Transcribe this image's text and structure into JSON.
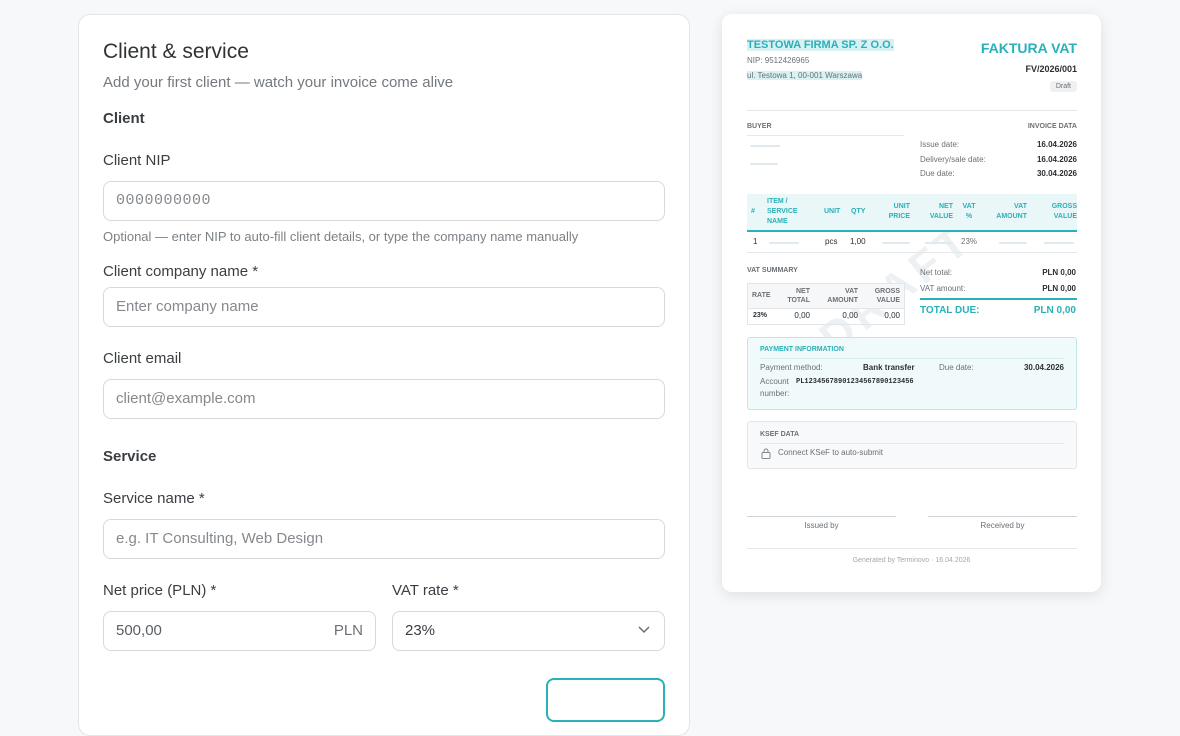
{
  "form": {
    "title": "Client & service",
    "subtitle": "Add your first client — watch your invoice come alive",
    "client_section": "Client",
    "nip_label": "Client NIP",
    "nip_placeholder": "0000000000",
    "nip_hint": "Optional — enter NIP to auto-fill client details, or type the company name manually",
    "company_label": "Client company name *",
    "company_placeholder": "Enter company name",
    "email_label": "Client email",
    "email_placeholder": "client@example.com",
    "service_section": "Service",
    "service_label": "Service name *",
    "service_placeholder": "e.g. IT Consulting, Web Design",
    "price_label": "Net price (PLN) *",
    "price_value": "500,00",
    "price_unit": "PLN",
    "vat_label": "VAT rate *",
    "vat_value": "23%"
  },
  "invoice": {
    "seller": {
      "name": "TESTOWA FIRMA SP. Z O.O.",
      "nip": "NIP: 9512426965",
      "address": "ul. Testowa 1, 00-001 Warszawa"
    },
    "title": "FAKTURA VAT",
    "number": "FV/2026/001",
    "status": "Draft",
    "buyer_heading": "BUYER",
    "data_heading": "INVOICE DATA",
    "dates": [
      {
        "label": "Issue date:",
        "value": "16.04.2026"
      },
      {
        "label": "Delivery/sale date:",
        "value": "16.04.2026"
      },
      {
        "label": "Due date:",
        "value": "30.04.2026"
      }
    ],
    "items": {
      "headers": [
        "#",
        "ITEM / SERVICE NAME",
        "UNIT",
        "QTY",
        "UNIT PRICE",
        "NET VALUE",
        "VAT %",
        "VAT AMOUNT",
        "GROSS VALUE"
      ],
      "rows": [
        {
          "no": "1",
          "unit": "pcs",
          "qty": "1,00",
          "vat_rate": "23%"
        }
      ]
    },
    "vat_summary": {
      "heading": "VAT SUMMARY",
      "headers": [
        "RATE",
        "NET TOTAL",
        "VAT AMOUNT",
        "GROSS VALUE"
      ],
      "rows": [
        [
          "23%",
          "0,00",
          "0,00",
          "0,00"
        ]
      ]
    },
    "totals": [
      {
        "label": "Net total:",
        "value": "PLN 0,00"
      },
      {
        "label": "VAT amount:",
        "value": "PLN 0,00"
      }
    ],
    "total_due": {
      "label": "TOTAL DUE:",
      "value": "PLN 0,00"
    },
    "watermark": "DRAFT",
    "payment": {
      "heading": "PAYMENT INFORMATION",
      "method_label": "Payment method:",
      "method": "Bank transfer",
      "due_label": "Due date:",
      "due": "30.04.2026",
      "account_label": "Account number:",
      "account": "PL12345678901234567890123456"
    },
    "ksef": {
      "heading": "KSEF DATA",
      "note": "Connect KSeF to auto-submit"
    },
    "signatures": [
      "Issued by",
      "Received by"
    ],
    "footer": "Generated by Terminovo · 16.04.2026"
  }
}
